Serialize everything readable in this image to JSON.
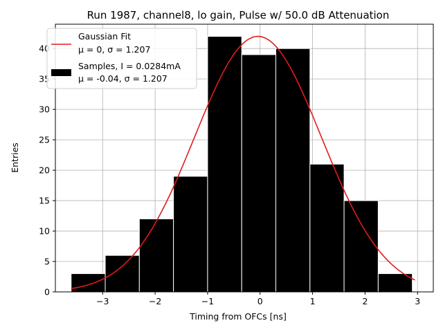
{
  "chart_data": {
    "type": "bar",
    "title": "Run 1987, channel8, lo gain, Pulse w/ 50.0 dB Attenuation",
    "xlabel": "Timing from OFCs [ns]",
    "ylabel": "Entries",
    "xlim": [
      -3.9,
      3.3
    ],
    "ylim": [
      0,
      44
    ],
    "xticks": [
      -3,
      -2,
      -1,
      0,
      1,
      2,
      3
    ],
    "yticks": [
      0,
      5,
      10,
      15,
      20,
      25,
      30,
      35,
      40
    ],
    "xtick_labels": [
      "−3",
      "−2",
      "−1",
      "0",
      "1",
      "2",
      "3"
    ],
    "ytick_labels": [
      "0",
      "5",
      "10",
      "15",
      "20",
      "25",
      "30",
      "35",
      "40"
    ],
    "grid": true,
    "legend_position": "top-left",
    "histogram": {
      "name": "Samples, I = 0.0284mA",
      "stat_line": "μ = -0.04, σ = 1.207",
      "color": "#000000",
      "edgecolor": "#ffffff",
      "bin_edges": [
        -3.6,
        -2.95,
        -2.3,
        -1.65,
        -1.0,
        -0.35,
        0.3,
        0.95,
        1.6,
        2.25,
        2.9
      ],
      "values": [
        3,
        6,
        12,
        19,
        42,
        39,
        40,
        21,
        15,
        3
      ]
    },
    "fit": {
      "name": "Gaussian Fit",
      "stat_line": "μ = 0, σ = 1.207",
      "color": "#e31a1c",
      "mu": -0.04,
      "sigma": 1.207,
      "amplitude": 42,
      "x_range": [
        -3.6,
        2.95
      ]
    }
  }
}
